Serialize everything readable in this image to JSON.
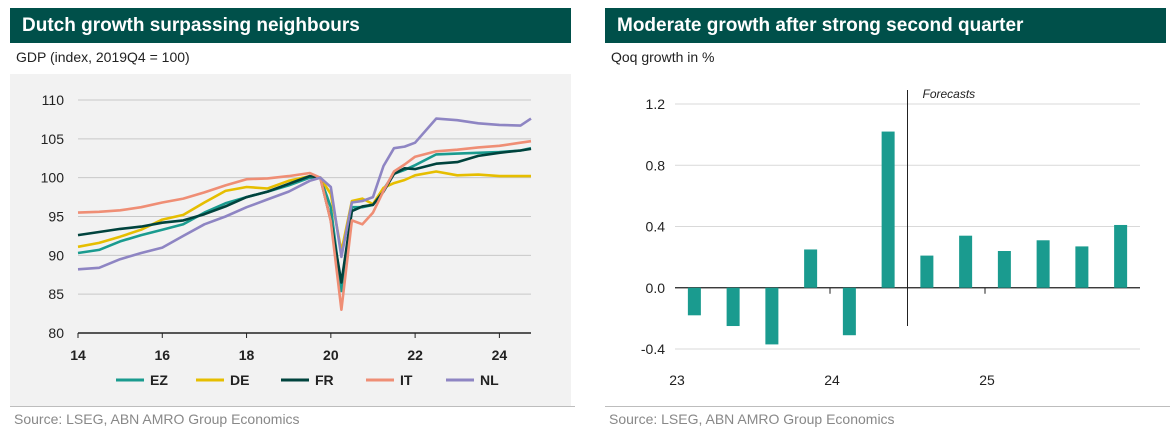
{
  "left_panel": {
    "title": "Dutch growth surpassing neighbours",
    "subtitle": "GDP (index, 2019Q4 = 100)",
    "source": "Source: LSEG, ABN AMRO Group Economics"
  },
  "right_panel": {
    "title": "Moderate growth after strong second quarter",
    "subtitle": "Qoq growth in %",
    "source": "Source: LSEG, ABN AMRO Group Economics"
  },
  "chart_data": [
    {
      "type": "line",
      "title": "Dutch growth surpassing neighbours",
      "ylabel": "GDP (index, 2019Q4 = 100)",
      "ylim": [
        80,
        110
      ],
      "yticks": [
        80,
        85,
        90,
        95,
        100,
        105,
        110
      ],
      "xlim": [
        2014,
        2024.75
      ],
      "xticks": [
        14,
        16,
        18,
        20,
        22,
        24
      ],
      "grid": "horizontal",
      "legend": "bottom",
      "series": [
        {
          "name": "EZ",
          "color": "#1a9b8f",
          "x": [
            2014,
            2014.5,
            2015,
            2015.5,
            2016,
            2016.5,
            2017,
            2017.5,
            2018,
            2018.5,
            2019,
            2019.5,
            2019.75,
            2020,
            2020.25,
            2020.5,
            2020.75,
            2021,
            2021.25,
            2021.5,
            2021.75,
            2022,
            2022.5,
            2023,
            2023.5,
            2024,
            2024.5,
            2024.75
          ],
          "y": [
            90.3,
            90.7,
            91.8,
            92.6,
            93.3,
            94.0,
            95.5,
            96.7,
            97.5,
            98.2,
            99.0,
            100.0,
            100.0,
            96.2,
            85.4,
            96.2,
            96.2,
            96.5,
            98.5,
            100.5,
            101.0,
            101.6,
            103.0,
            103.1,
            103.2,
            103.3,
            103.5,
            103.8
          ]
        },
        {
          "name": "DE",
          "color": "#e6be00",
          "x": [
            2014,
            2014.5,
            2015,
            2015.5,
            2016,
            2016.5,
            2017,
            2017.5,
            2018,
            2018.5,
            2019,
            2019.5,
            2019.75,
            2020,
            2020.25,
            2020.5,
            2020.75,
            2021,
            2021.25,
            2021.5,
            2021.75,
            2022,
            2022.5,
            2023,
            2023.5,
            2024,
            2024.5,
            2024.75
          ],
          "y": [
            91.1,
            91.6,
            92.4,
            93.3,
            94.6,
            95.2,
            96.8,
            98.3,
            98.8,
            98.6,
            99.6,
            100.2,
            100.0,
            97.9,
            90.5,
            97.0,
            97.3,
            96.6,
            98.7,
            99.3,
            99.7,
            100.3,
            100.8,
            100.3,
            100.4,
            100.2,
            100.2,
            100.2
          ]
        },
        {
          "name": "FR",
          "color": "#00433d",
          "x": [
            2014,
            2014.5,
            2015,
            2015.5,
            2016,
            2016.5,
            2017,
            2017.5,
            2018,
            2018.5,
            2019,
            2019.5,
            2019.75,
            2020,
            2020.25,
            2020.5,
            2020.75,
            2021,
            2021.25,
            2021.5,
            2021.75,
            2022,
            2022.5,
            2023,
            2023.5,
            2024,
            2024.5,
            2024.75
          ],
          "y": [
            92.6,
            93.0,
            93.4,
            93.7,
            94.2,
            94.5,
            95.3,
            96.3,
            97.5,
            98.2,
            99.2,
            100.2,
            100.0,
            94.5,
            86.5,
            95.7,
            96.3,
            96.5,
            98.2,
            100.5,
            101.2,
            101.1,
            101.8,
            102.0,
            102.8,
            103.2,
            103.5,
            103.7
          ]
        },
        {
          "name": "IT",
          "color": "#ef8e75",
          "x": [
            2014,
            2014.5,
            2015,
            2015.5,
            2016,
            2016.5,
            2017,
            2017.5,
            2018,
            2018.5,
            2019,
            2019.5,
            2019.75,
            2020,
            2020.25,
            2020.5,
            2020.75,
            2021,
            2021.25,
            2021.5,
            2021.75,
            2022,
            2022.5,
            2023,
            2023.5,
            2024,
            2024.5,
            2024.75
          ],
          "y": [
            95.5,
            95.6,
            95.8,
            96.2,
            96.8,
            97.3,
            98.1,
            99.0,
            99.8,
            99.9,
            100.2,
            100.6,
            100.0,
            94.4,
            83.0,
            94.5,
            94.0,
            95.5,
            98.3,
            100.8,
            101.7,
            102.7,
            103.4,
            103.6,
            103.9,
            104.1,
            104.5,
            104.7
          ]
        },
        {
          "name": "NL",
          "color": "#8e85c3",
          "x": [
            2014,
            2014.5,
            2015,
            2015.5,
            2016,
            2016.5,
            2017,
            2017.5,
            2018,
            2018.5,
            2019,
            2019.5,
            2019.75,
            2020,
            2020.25,
            2020.5,
            2020.75,
            2021,
            2021.25,
            2021.5,
            2021.75,
            2022,
            2022.5,
            2023,
            2023.5,
            2024,
            2024.5,
            2024.75
          ],
          "y": [
            88.2,
            88.4,
            89.5,
            90.3,
            91.0,
            92.5,
            94.0,
            95.0,
            96.2,
            97.2,
            98.2,
            99.6,
            100.0,
            98.8,
            89.8,
            96.8,
            97.0,
            97.5,
            101.5,
            103.8,
            104.0,
            104.5,
            107.6,
            107.4,
            107.0,
            106.8,
            106.7,
            107.6
          ]
        }
      ]
    },
    {
      "type": "bar",
      "title": "Moderate growth after strong second quarter",
      "ylabel": "Qoq growth in %",
      "ylim": [
        -0.4,
        1.2
      ],
      "yticks": [
        "1.2",
        "0.8",
        "0.4",
        "0.0",
        "-0.4"
      ],
      "xticks": [
        "23",
        "24",
        "25"
      ],
      "annotation": "Forecasts",
      "color": "#1a9b8f",
      "categories": [
        "2023Q1",
        "2023Q2",
        "2023Q3",
        "2023Q4",
        "2024Q1",
        "2024Q2",
        "2024Q3",
        "2024Q4",
        "2025Q1",
        "2025Q2",
        "2025Q3",
        "2025Q4"
      ],
      "values": [
        -0.18,
        -0.25,
        -0.37,
        0.25,
        -0.31,
        1.02,
        0.21,
        0.34,
        0.24,
        0.31,
        0.27,
        0.41
      ]
    }
  ]
}
